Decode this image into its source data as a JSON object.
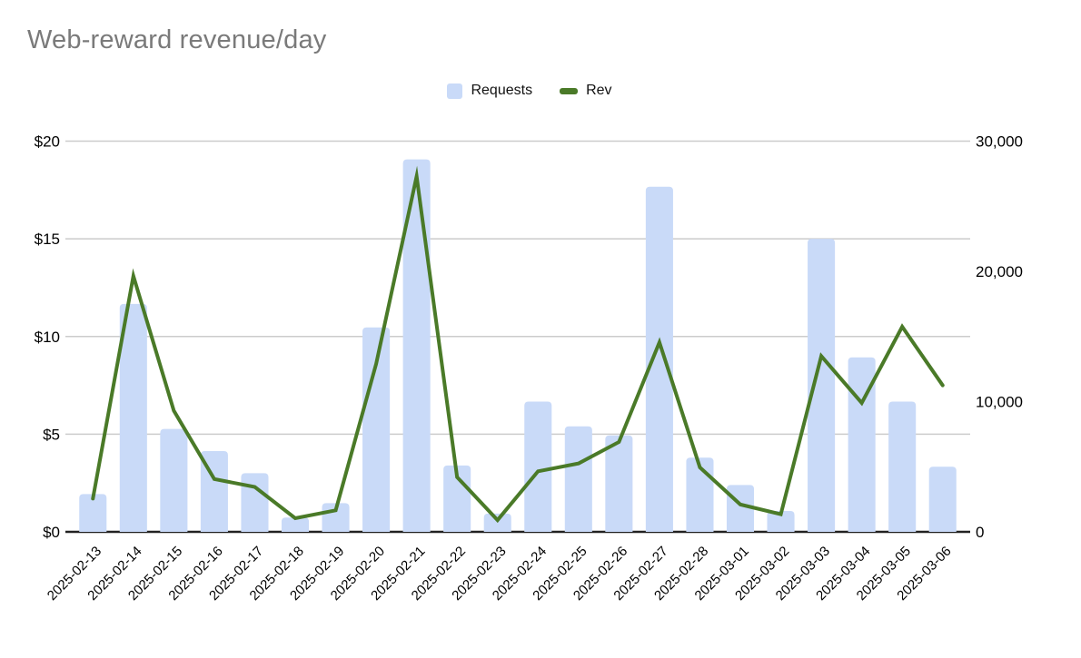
{
  "title": "Web-reward revenue/day",
  "legend": {
    "items": [
      {
        "label": "Requests",
        "swatch": "bar-swatch",
        "color": "#c9daf8"
      },
      {
        "label": "Rev",
        "swatch": "line-swatch",
        "color": "#4a7a28"
      }
    ]
  },
  "colors": {
    "bar_fill": "#c9daf8",
    "line_stroke": "#4a7a28",
    "gridline": "#cccccc",
    "axis_line": "#222222",
    "title_text": "#7a7a7a",
    "tick_text": "#000000"
  },
  "chart_data": {
    "type": "combo",
    "title": "Web-reward revenue/day",
    "categories": [
      "2025-02-13",
      "2025-02-14",
      "2025-02-15",
      "2025-02-16",
      "2025-02-17",
      "2025-02-18",
      "2025-02-19",
      "2025-02-20",
      "2025-02-21",
      "2025-02-22",
      "2025-02-23",
      "2025-02-24",
      "2025-02-25",
      "2025-02-26",
      "2025-02-27",
      "2025-02-28",
      "2025-03-01",
      "2025-03-02",
      "2025-03-03",
      "2025-03-04",
      "2025-03-05",
      "2025-03-06"
    ],
    "series": [
      {
        "name": "Requests",
        "type": "bar",
        "axis": "right",
        "color": "#c9daf8",
        "values": [
          2900,
          17500,
          7900,
          6200,
          4500,
          1100,
          2200,
          15700,
          28600,
          5100,
          1400,
          10000,
          8100,
          7400,
          26500,
          5700,
          3600,
          1600,
          22500,
          13400,
          10000,
          5000
        ]
      },
      {
        "name": "Rev",
        "type": "line",
        "axis": "left",
        "color": "#4a7a28",
        "values": [
          1.7,
          13.1,
          6.2,
          2.7,
          2.3,
          0.7,
          1.1,
          8.6,
          18.2,
          2.8,
          0.6,
          3.1,
          3.5,
          4.6,
          9.7,
          3.3,
          1.4,
          0.9,
          9.0,
          6.6,
          10.5,
          7.5
        ]
      }
    ],
    "left_axis": {
      "min": 0,
      "max": 20,
      "tick_values": [
        0,
        5,
        10,
        15,
        20
      ],
      "tick_labels": [
        "$0",
        "$5",
        "$10",
        "$15",
        "$20"
      ]
    },
    "right_axis": {
      "min": 0,
      "max": 30000,
      "tick_values": [
        0,
        10000,
        20000,
        30000
      ],
      "tick_labels": [
        "0",
        "10,000",
        "20,000",
        "30,000"
      ]
    },
    "grid": true,
    "legend_position": "top",
    "x_label_rotation": -45
  }
}
